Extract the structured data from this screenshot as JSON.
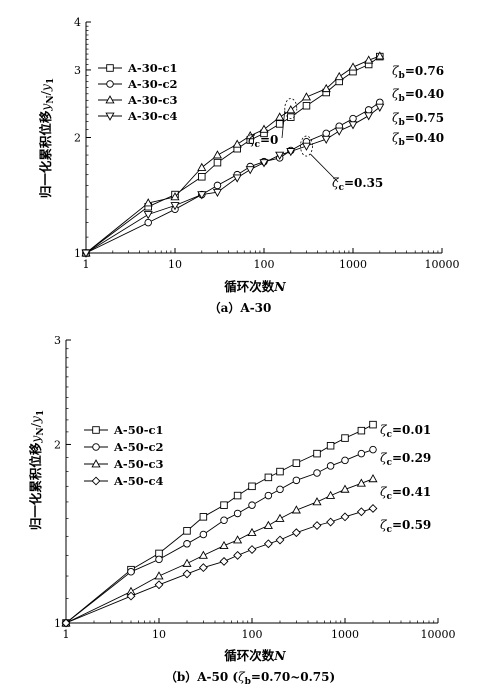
{
  "chart_data": [
    {
      "type": "line",
      "caption": "（a）A-30",
      "xlabel": "循环次数N",
      "ylabel": "归一化累积位移yN/y1",
      "xscale": "log",
      "yscale": "log",
      "xlim": [
        1,
        10000
      ],
      "ylim": [
        1,
        4
      ],
      "xticks": [
        1,
        10,
        100,
        1000,
        10000
      ],
      "xtick_labels": [
        "1",
        "10",
        "100",
        "1000",
        "10000"
      ],
      "yticks": [
        1,
        2,
        3,
        4
      ],
      "ytick_labels": [
        "1",
        "2",
        "3",
        "4"
      ],
      "legend_position": "top-left",
      "grid": false,
      "series": [
        {
          "name": "A-30-c1",
          "marker": "square",
          "x": [
            1,
            5,
            10,
            20,
            30,
            50,
            70,
            100,
            150,
            200,
            300,
            500,
            700,
            1000,
            1500,
            2000
          ],
          "y": [
            1.0,
            1.32,
            1.42,
            1.58,
            1.72,
            1.87,
            1.97,
            2.05,
            2.17,
            2.26,
            2.42,
            2.62,
            2.8,
            2.97,
            3.1,
            3.25
          ]
        },
        {
          "name": "A-30-c2",
          "marker": "circle",
          "x": [
            1,
            5,
            10,
            20,
            30,
            50,
            70,
            100,
            150,
            200,
            300,
            500,
            700,
            1000,
            1500,
            2000
          ],
          "y": [
            1.0,
            1.2,
            1.3,
            1.42,
            1.5,
            1.6,
            1.68,
            1.73,
            1.77,
            1.85,
            1.95,
            2.05,
            2.14,
            2.24,
            2.36,
            2.47
          ]
        },
        {
          "name": "A-30-c3",
          "marker": "triangle-up",
          "x": [
            1,
            5,
            10,
            20,
            30,
            50,
            70,
            100,
            150,
            200,
            300,
            500,
            700,
            1000,
            1500,
            2000
          ],
          "y": [
            1.0,
            1.35,
            1.4,
            1.67,
            1.8,
            1.92,
            2.02,
            2.1,
            2.26,
            2.36,
            2.55,
            2.68,
            2.88,
            3.05,
            3.18,
            3.26
          ]
        },
        {
          "name": "A-30-c4",
          "marker": "triangle-down",
          "x": [
            1,
            5,
            10,
            20,
            30,
            50,
            70,
            100,
            150,
            200,
            300,
            500,
            700,
            1000,
            1500,
            2000
          ],
          "y": [
            1.0,
            1.26,
            1.33,
            1.42,
            1.44,
            1.57,
            1.65,
            1.72,
            1.8,
            1.84,
            1.9,
            1.98,
            2.08,
            2.16,
            2.28,
            2.4
          ]
        }
      ],
      "annotations": [
        {
          "text": "ζb=0.76",
          "x": 1900,
          "y": 3.4
        },
        {
          "text": "ζb=0.40",
          "x": 1900,
          "y": 3.0
        },
        {
          "text": "ζc=0",
          "x": 120,
          "y": 2.5
        },
        {
          "text": "ζb=0.75",
          "x": 1900,
          "y": 2.55
        },
        {
          "text": "ζb=0.40",
          "x": 1900,
          "y": 2.28
        },
        {
          "text": "ζc=0.35",
          "x": 330,
          "y": 1.73
        }
      ]
    },
    {
      "type": "line",
      "caption": "（b）A-50 (ζb=0.70~0.75)",
      "xlabel": "循环次数N",
      "ylabel": "归一化累积位移yN/y1",
      "xscale": "log",
      "yscale": "log",
      "xlim": [
        1,
        10000
      ],
      "ylim": [
        1,
        3
      ],
      "xticks": [
        1,
        10,
        100,
        1000,
        10000
      ],
      "xtick_labels": [
        "1",
        "10",
        "100",
        "1000",
        "10000"
      ],
      "yticks": [
        1,
        2,
        3
      ],
      "ytick_labels": [
        "1",
        "2",
        "3"
      ],
      "legend_position": "top-left",
      "grid": false,
      "series": [
        {
          "name": "A-50-c1",
          "marker": "square",
          "x": [
            1,
            5,
            10,
            20,
            30,
            50,
            70,
            100,
            150,
            200,
            300,
            500,
            700,
            1000,
            1500,
            2000
          ],
          "y": [
            1.0,
            1.23,
            1.31,
            1.43,
            1.51,
            1.58,
            1.64,
            1.7,
            1.76,
            1.8,
            1.86,
            1.93,
            1.99,
            2.05,
            2.11,
            2.16
          ]
        },
        {
          "name": "A-50-c2",
          "marker": "circle",
          "x": [
            1,
            5,
            10,
            20,
            30,
            50,
            70,
            100,
            150,
            200,
            300,
            500,
            700,
            1000,
            1500,
            2000
          ],
          "y": [
            1.0,
            1.22,
            1.28,
            1.36,
            1.41,
            1.49,
            1.53,
            1.58,
            1.64,
            1.68,
            1.74,
            1.79,
            1.84,
            1.88,
            1.93,
            1.96
          ]
        },
        {
          "name": "A-50-c3",
          "marker": "triangle-up",
          "x": [
            1,
            5,
            10,
            20,
            30,
            50,
            70,
            100,
            150,
            200,
            300,
            500,
            700,
            1000,
            1500,
            2000
          ],
          "y": [
            1.0,
            1.13,
            1.2,
            1.26,
            1.3,
            1.35,
            1.38,
            1.42,
            1.46,
            1.5,
            1.55,
            1.6,
            1.64,
            1.68,
            1.72,
            1.75
          ]
        },
        {
          "name": "A-50-c4",
          "marker": "diamond",
          "x": [
            1,
            5,
            10,
            20,
            30,
            50,
            70,
            100,
            150,
            200,
            300,
            500,
            700,
            1000,
            1500,
            2000
          ],
          "y": [
            1.0,
            1.11,
            1.16,
            1.21,
            1.24,
            1.27,
            1.3,
            1.33,
            1.36,
            1.38,
            1.42,
            1.46,
            1.48,
            1.51,
            1.54,
            1.56
          ]
        }
      ],
      "annotations": [
        {
          "text": "ζc=0.01",
          "x": 2300,
          "y": 2.16
        },
        {
          "text": "ζc=0.29",
          "x": 2300,
          "y": 1.95
        },
        {
          "text": "ζc=0.41",
          "x": 2300,
          "y": 1.74
        },
        {
          "text": "ζc=0.59",
          "x": 2300,
          "y": 1.55
        }
      ]
    }
  ]
}
